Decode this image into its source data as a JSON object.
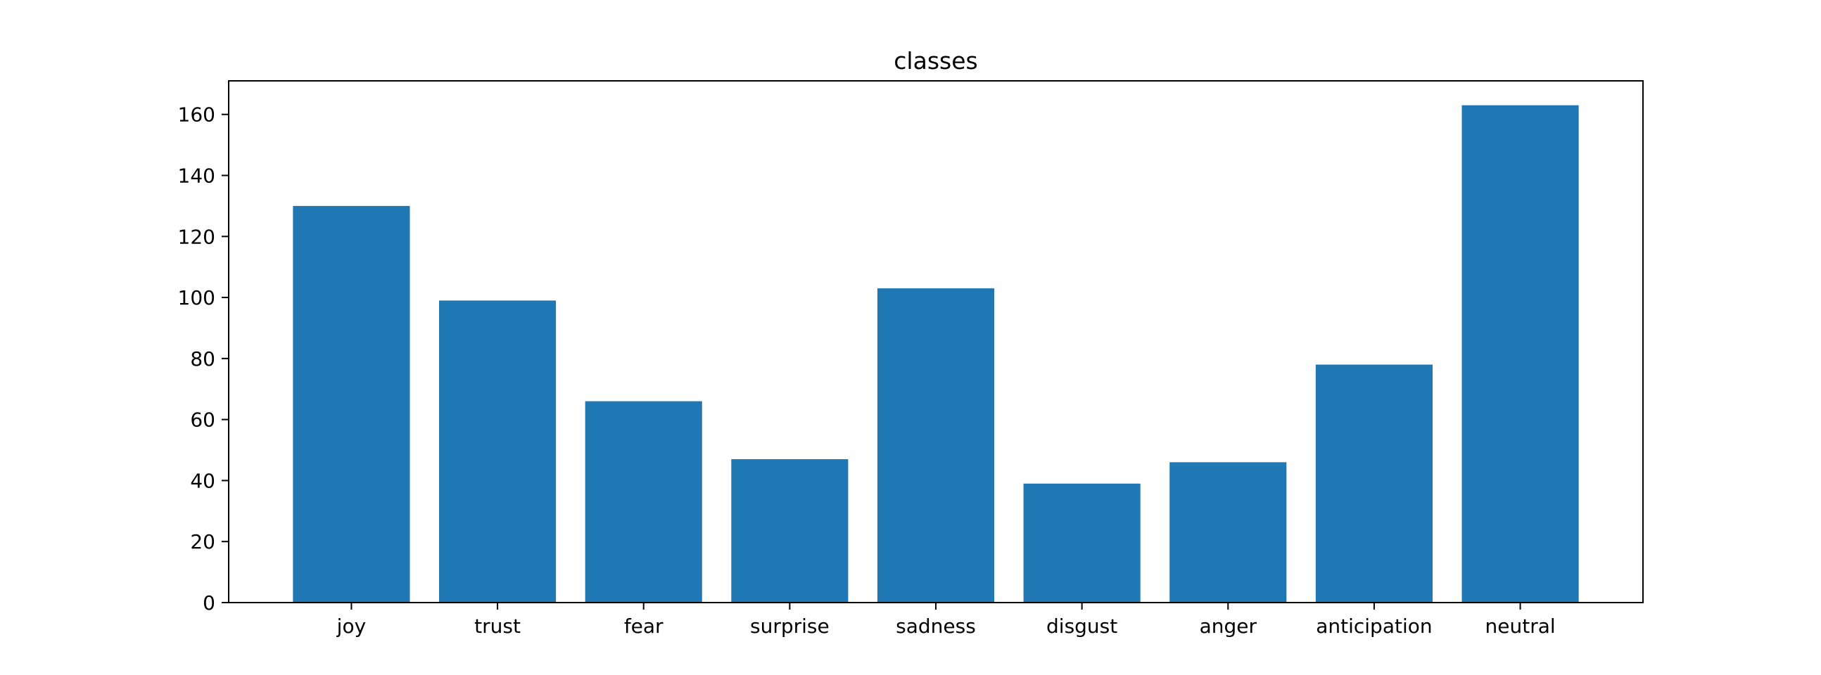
{
  "chart_data": {
    "type": "bar",
    "title": "classes",
    "xlabel": "",
    "ylabel": "",
    "categories": [
      "joy",
      "trust",
      "fear",
      "surprise",
      "sadness",
      "disgust",
      "anger",
      "anticipation",
      "neutral"
    ],
    "values": [
      130,
      99,
      66,
      47,
      103,
      39,
      46,
      78,
      163
    ],
    "ylim": [
      0,
      171
    ],
    "yticks": [
      0,
      20,
      40,
      60,
      80,
      100,
      120,
      140,
      160
    ],
    "grid": false,
    "legend": "none",
    "bar_color": "#1f77b4"
  }
}
